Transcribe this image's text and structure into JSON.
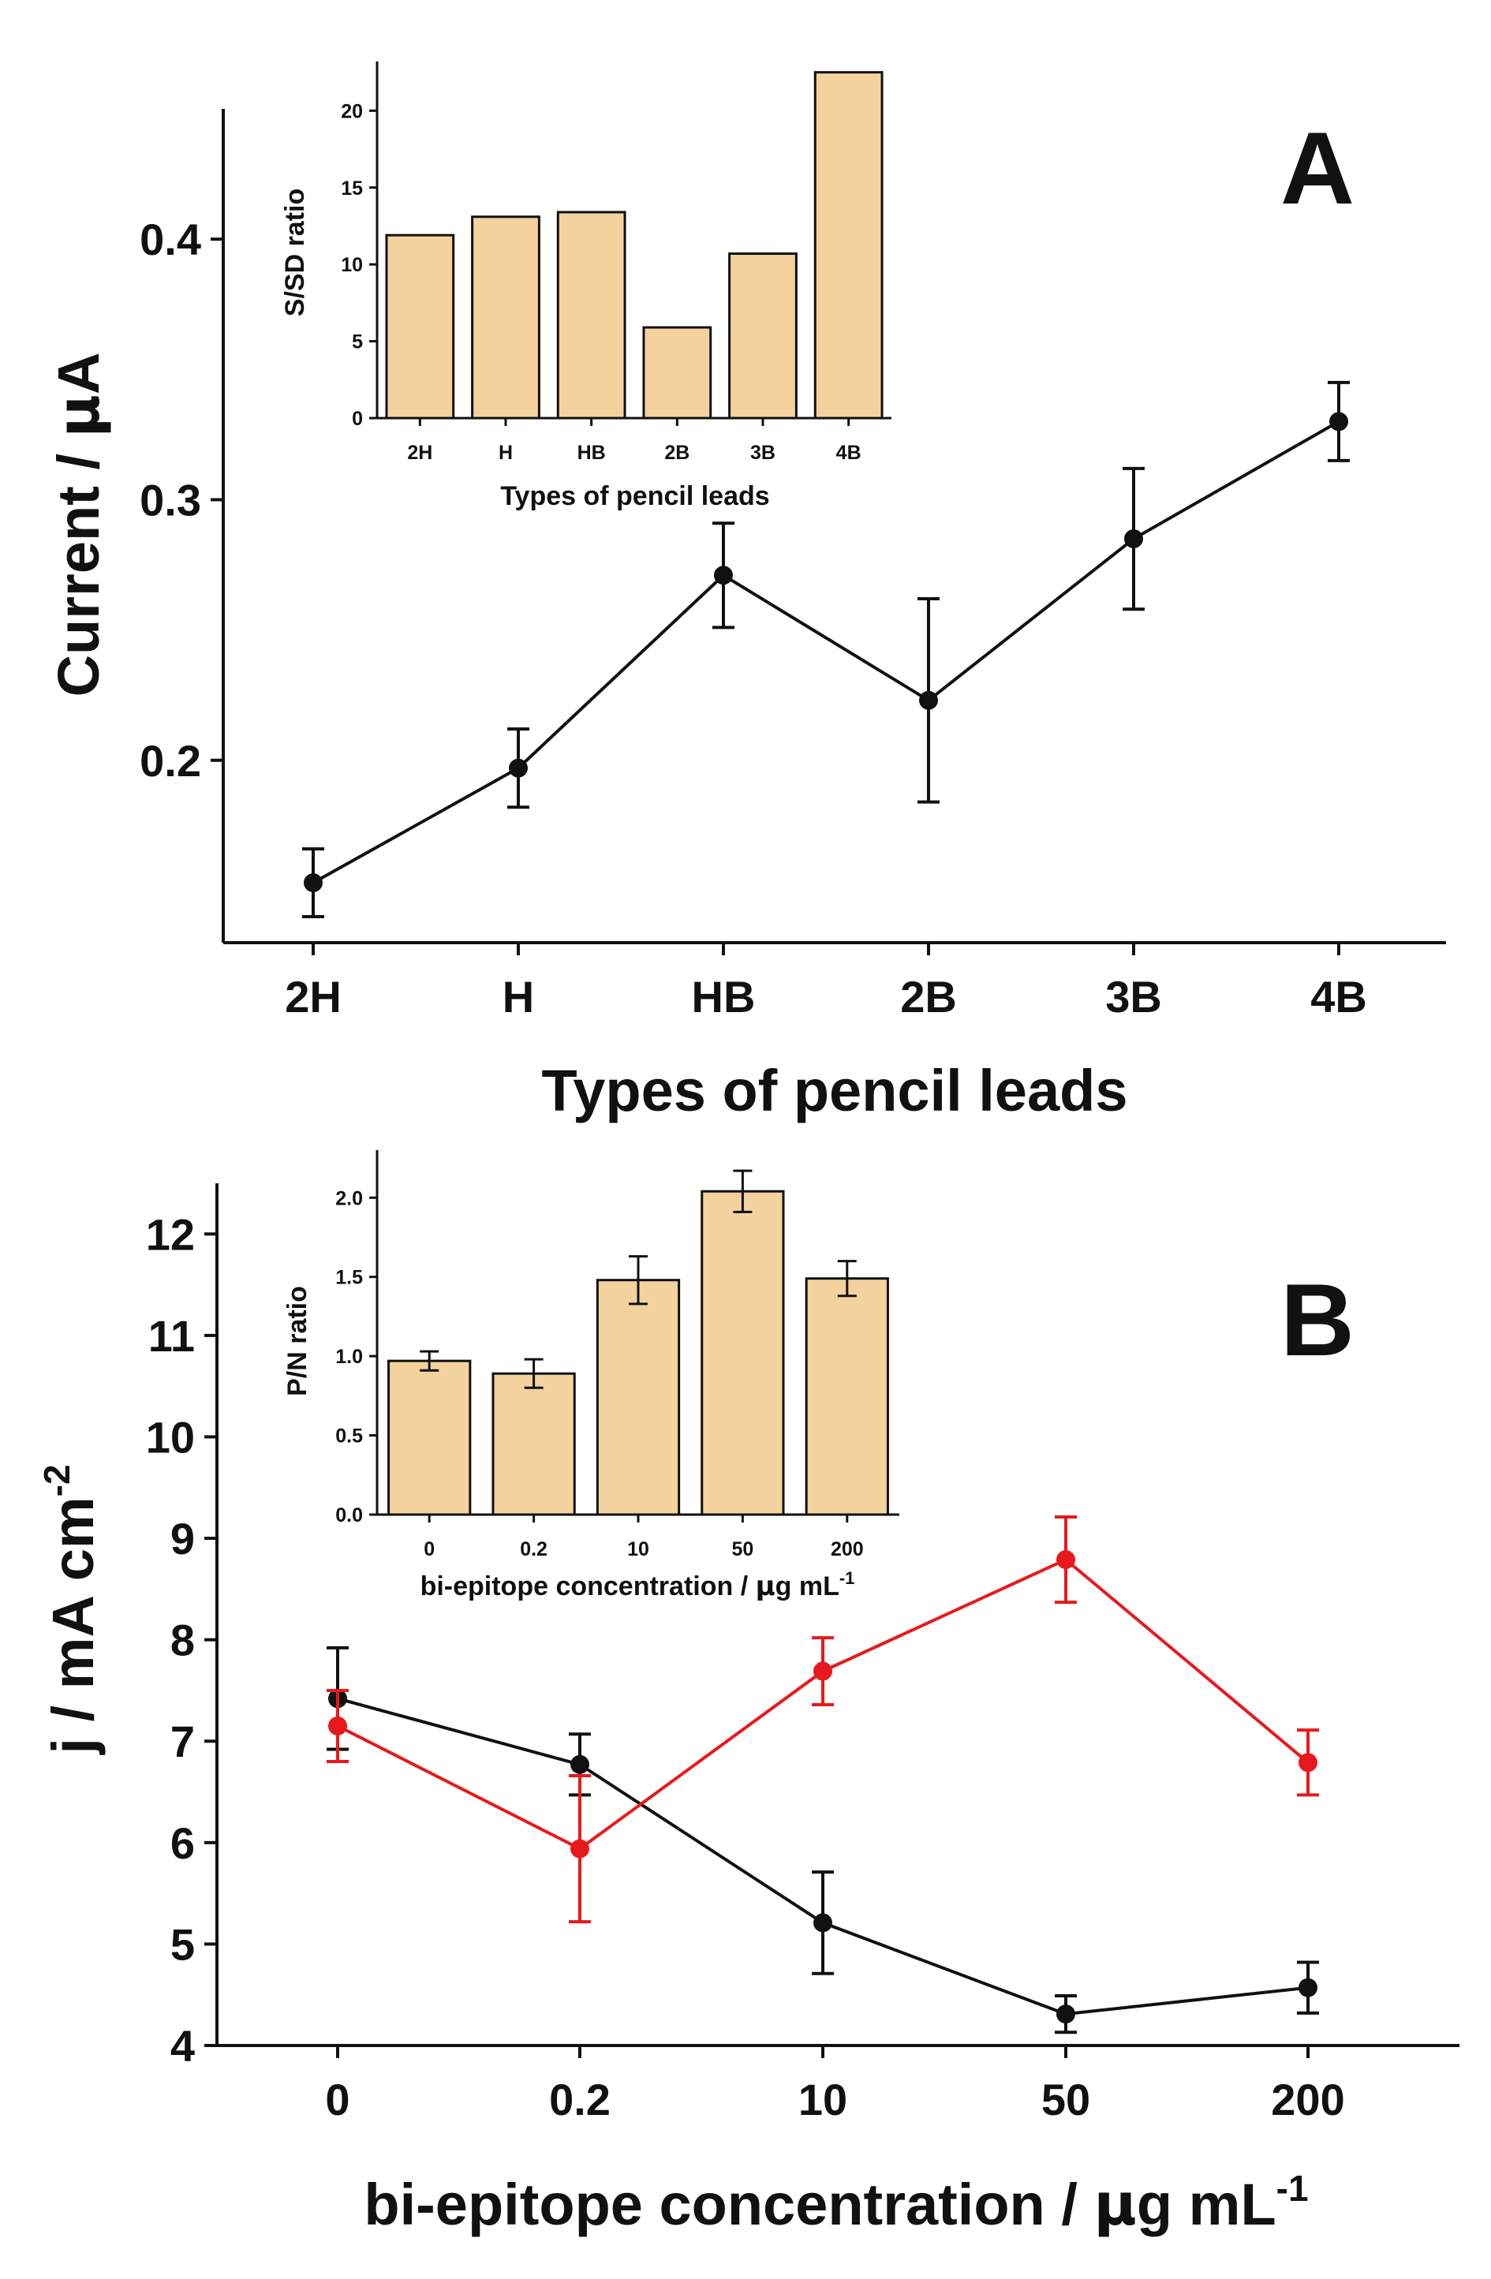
{
  "figure": {
    "panel_a_letter": "A",
    "panel_b_letter": "B"
  },
  "colors": {
    "axis": "#111111",
    "series_black": "#111111",
    "series_red": "#e8191c",
    "bar_fill": "#f4d29e",
    "bar_stroke": "#111111"
  },
  "chart_data": [
    {
      "id": "A-main",
      "type": "line",
      "title": "",
      "xlabel": "Types of pencil leads",
      "ylabel_main": "Current / ",
      "ylabel_mu": "μ",
      "ylabel_unit": "A",
      "categories": [
        "2H",
        "H",
        "HB",
        "2B",
        "3B",
        "4B"
      ],
      "yticks": [
        "0.2",
        "0.3",
        "0.4"
      ],
      "ytick_values": [
        0.2,
        0.3,
        0.4
      ],
      "ylim": [
        0.13,
        0.45
      ],
      "series": [
        {
          "name": "current",
          "color": "#111111",
          "values": [
            0.153,
            0.197,
            0.271,
            0.223,
            0.285,
            0.33
          ],
          "errors": [
            0.013,
            0.015,
            0.02,
            0.039,
            0.027,
            0.015
          ]
        }
      ],
      "grid": false,
      "legend": "none"
    },
    {
      "id": "A-inset",
      "type": "bar",
      "xlabel": "Types of pencil leads",
      "ylabel": "S/SD ratio",
      "categories": [
        "2H",
        "H",
        "HB",
        "2B",
        "3B",
        "4B"
      ],
      "values": [
        11.9,
        13.1,
        13.4,
        5.9,
        10.7,
        22.5
      ],
      "yticks": [
        "0",
        "5",
        "10",
        "15",
        "20"
      ],
      "ytick_values": [
        0,
        5,
        10,
        15,
        20
      ],
      "ylim": [
        0,
        23.2
      ]
    },
    {
      "id": "B-main",
      "type": "line",
      "xlabel_main": "bi-epitope concentration / ",
      "xlabel_mu": "μ",
      "xlabel_unit": "g mL",
      "xlabel_sup": "-1",
      "ylabel_main": "j / mA cm",
      "ylabel_sup": "-2",
      "categories": [
        "0",
        "0.2",
        "10",
        "50",
        "200"
      ],
      "yticks": [
        "4",
        "5",
        "6",
        "7",
        "8",
        "9",
        "10",
        "11",
        "12"
      ],
      "ytick_values": [
        4,
        5,
        6,
        7,
        8,
        9,
        10,
        11,
        12
      ],
      "ylim": [
        4,
        12.5
      ],
      "series": [
        {
          "name": "black",
          "color": "#111111",
          "values": [
            7.42,
            6.77,
            5.21,
            4.31,
            4.57
          ],
          "errors": [
            0.5,
            0.3,
            0.5,
            0.18,
            0.25
          ]
        },
        {
          "name": "red",
          "color": "#e8191c",
          "values": [
            7.15,
            5.94,
            7.69,
            8.79,
            6.79
          ],
          "errors": [
            0.35,
            0.72,
            0.33,
            0.42,
            0.32
          ]
        }
      ],
      "grid": false,
      "legend": "none"
    },
    {
      "id": "B-inset",
      "type": "bar",
      "xlabel_main": "bi-epitope concentration / ",
      "xlabel_mu": "μ",
      "xlabel_unit": "g mL",
      "xlabel_sup": "-1",
      "ylabel": "P/N ratio",
      "categories": [
        "0",
        "0.2",
        "10",
        "50",
        "200"
      ],
      "values": [
        0.97,
        0.89,
        1.48,
        2.04,
        1.49
      ],
      "errors": [
        0.06,
        0.09,
        0.15,
        0.13,
        0.11
      ],
      "yticks": [
        "0.0",
        "0.5",
        "1.0",
        "1.5",
        "2.0"
      ],
      "ytick_values": [
        0,
        0.5,
        1.0,
        1.5,
        2.0
      ],
      "ylim": [
        0,
        2.3
      ]
    }
  ]
}
